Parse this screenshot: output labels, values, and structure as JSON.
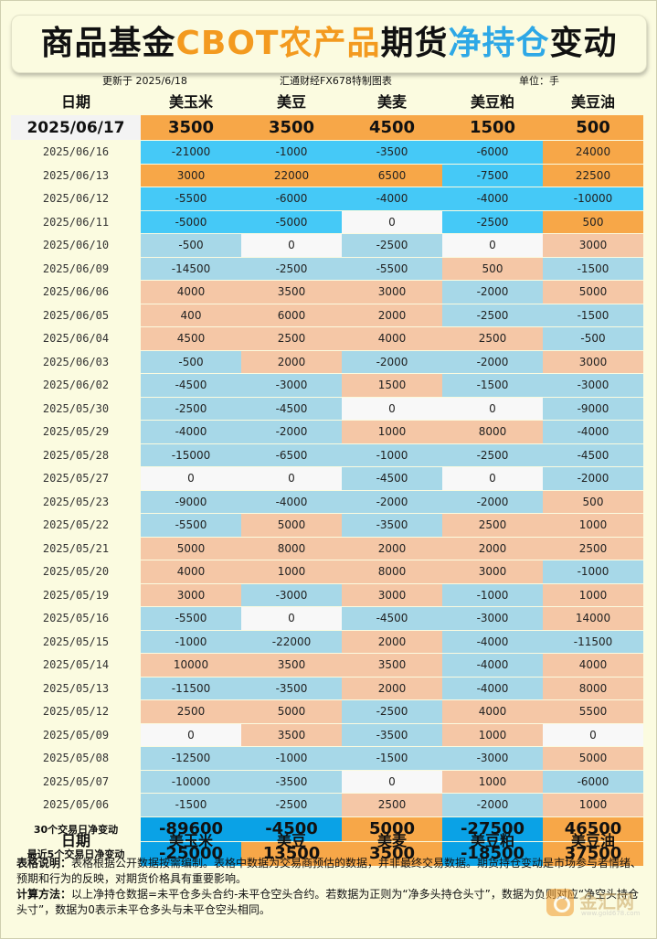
{
  "title": {
    "part1": "商品基金",
    "part2": "CBOT农产品",
    "part3": "期货",
    "part4": "净持仓",
    "part5": "变动"
  },
  "meta": {
    "updated": "更新于 2025/6/18",
    "source": "汇通财经FX678特制图表",
    "unit": "单位：手"
  },
  "header": {
    "date": "日期",
    "cols": [
      "美玉米",
      "美豆",
      "美麦",
      "美豆粕",
      "美豆油"
    ]
  },
  "colors": {
    "positive_strong": "#f7a748",
    "negative_strong": "#45c9f7",
    "positive": "#f5c7a6",
    "negative": "#a7d8e8",
    "zero": "#f8f8f8",
    "title_orange": "#f39a1f",
    "title_blue": "#2ea8e6"
  },
  "chart_data": {
    "type": "table",
    "columns": [
      "日期",
      "美玉米",
      "美豆",
      "美麦",
      "美豆粕",
      "美豆油"
    ],
    "rows": [
      {
        "date": "2025/06/17",
        "values": [
          3500,
          3500,
          4500,
          1500,
          500
        ]
      },
      {
        "date": "2025/06/16",
        "values": [
          -21000,
          -1000,
          -3500,
          -6000,
          24000
        ]
      },
      {
        "date": "2025/06/13",
        "values": [
          3000,
          22000,
          6500,
          -7500,
          22500
        ]
      },
      {
        "date": "2025/06/12",
        "values": [
          -5500,
          -6000,
          -4000,
          -4000,
          -10000
        ]
      },
      {
        "date": "2025/06/11",
        "values": [
          -5000,
          -5000,
          0,
          -2500,
          500
        ]
      },
      {
        "date": "2025/06/10",
        "values": [
          -500,
          0,
          -2500,
          0,
          3000
        ]
      },
      {
        "date": "2025/06/09",
        "values": [
          -14500,
          -2500,
          -5500,
          500,
          -1500
        ]
      },
      {
        "date": "2025/06/06",
        "values": [
          4000,
          3500,
          3000,
          -2000,
          5000
        ]
      },
      {
        "date": "2025/06/05",
        "values": [
          400,
          6000,
          2000,
          -2500,
          -1500
        ]
      },
      {
        "date": "2025/06/04",
        "values": [
          4500,
          2500,
          4000,
          2500,
          -500
        ]
      },
      {
        "date": "2025/06/03",
        "values": [
          -500,
          2000,
          -2000,
          -2000,
          3000
        ]
      },
      {
        "date": "2025/06/02",
        "values": [
          -4500,
          -3000,
          1500,
          -1500,
          -3000
        ]
      },
      {
        "date": "2025/05/30",
        "values": [
          -2500,
          -4500,
          0,
          0,
          -9000
        ]
      },
      {
        "date": "2025/05/29",
        "values": [
          -4000,
          -2000,
          1000,
          8000,
          -4000
        ]
      },
      {
        "date": "2025/05/28",
        "values": [
          -15000,
          -6500,
          -1000,
          -2500,
          -4500
        ]
      },
      {
        "date": "2025/05/27",
        "values": [
          0,
          0,
          -4500,
          0,
          -2000
        ]
      },
      {
        "date": "2025/05/23",
        "values": [
          -9000,
          -4000,
          -2000,
          -2000,
          500
        ]
      },
      {
        "date": "2025/05/22",
        "values": [
          -5500,
          5000,
          -3500,
          2500,
          1000
        ]
      },
      {
        "date": "2025/05/21",
        "values": [
          5000,
          8000,
          2000,
          2000,
          2500
        ]
      },
      {
        "date": "2025/05/20",
        "values": [
          4000,
          1000,
          8000,
          3000,
          -1000
        ]
      },
      {
        "date": "2025/05/19",
        "values": [
          3000,
          -3000,
          3000,
          -1000,
          1000
        ]
      },
      {
        "date": "2025/05/16",
        "values": [
          -5500,
          0,
          -4500,
          -3000,
          14000
        ]
      },
      {
        "date": "2025/05/15",
        "values": [
          -1000,
          -22000,
          2000,
          -4000,
          -11500
        ]
      },
      {
        "date": "2025/05/14",
        "values": [
          10000,
          3500,
          3500,
          -4000,
          4000
        ]
      },
      {
        "date": "2025/05/13",
        "values": [
          -11500,
          -3500,
          2000,
          -4000,
          8000
        ]
      },
      {
        "date": "2025/05/12",
        "values": [
          2500,
          5000,
          -2500,
          4000,
          5500
        ]
      },
      {
        "date": "2025/05/09",
        "values": [
          0,
          3500,
          -3500,
          1000,
          0
        ]
      },
      {
        "date": "2025/05/08",
        "values": [
          -12500,
          -1000,
          -1500,
          -3000,
          5000
        ]
      },
      {
        "date": "2025/05/07",
        "values": [
          -10000,
          -3500,
          0,
          1000,
          -6000
        ]
      },
      {
        "date": "2025/05/06",
        "values": [
          -1500,
          -2500,
          2500,
          -2000,
          1000
        ]
      }
    ],
    "strong_rows": 5,
    "summary": [
      {
        "label": "30个交易日净变动",
        "values": [
          -89600,
          -4500,
          5000,
          -27500,
          46500
        ]
      },
      {
        "label": "最近5个交易日净变动",
        "values": [
          -25000,
          13500,
          3500,
          -18500,
          37500
        ]
      }
    ]
  },
  "notes": {
    "desc_label": "表格说明：",
    "desc_text": "表格根据公开数据按需编制。表格中数据为交易商预估的数据，并非最终交易数据。期货持仓变动是市场参与者情绪、预期和行为的反映，对期货价格具有重要影响。",
    "method_label": "计算方法：",
    "method_text": "以上净持仓数据=未平仓多头合约-未平仓空头合约。若数据为正则为“净多头持仓头寸”，数据为负则对应“净空头持仓头寸”，数据为0表示未平仓多头与未平仓空头相同。"
  },
  "logo": {
    "text": "金汇网",
    "url": "www.gold678.com"
  }
}
